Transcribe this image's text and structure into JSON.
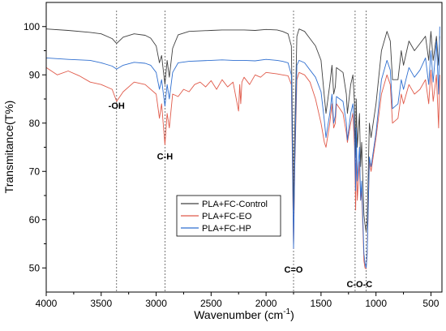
{
  "chart_data": {
    "type": "line",
    "xlabel": "Wavenumber (cm",
    "xlabel_sup": "-1",
    "xlabel_end": ")",
    "ylabel": "Transmitance(T%)",
    "xlim": [
      4000,
      400
    ],
    "ylim": [
      45,
      105
    ],
    "x_reversed": true,
    "xticks": [
      4000,
      3500,
      3000,
      2500,
      2000,
      1500,
      1000,
      500
    ],
    "yticks": [
      50,
      60,
      70,
      80,
      90,
      100
    ],
    "grid": false,
    "legend_position": "lower-center",
    "annotations": [
      {
        "label": "-OH",
        "x": 3360,
        "y": 83
      },
      {
        "label": "C-H",
        "x": 2920,
        "y": 72.5
      },
      {
        "label": "C=O",
        "x": 1750,
        "y": 49
      },
      {
        "label": "C-O-C",
        "x": 1150,
        "y": 46
      }
    ],
    "reference_lines_x": [
      3360,
      2920,
      1750,
      1190,
      1090
    ],
    "series": [
      {
        "name": "PLA+FC-Control",
        "color": "#404040",
        "x": [
          4000,
          3800,
          3600,
          3500,
          3400,
          3360,
          3300,
          3200,
          3100,
          3050,
          3000,
          2970,
          2950,
          2920,
          2900,
          2880,
          2850,
          2800,
          2700,
          2600,
          2500,
          2400,
          2300,
          2200,
          2100,
          2000,
          1900,
          1850,
          1800,
          1770,
          1760,
          1750,
          1740,
          1720,
          1700,
          1650,
          1600,
          1550,
          1500,
          1470,
          1455,
          1420,
          1400,
          1385,
          1370,
          1360,
          1300,
          1270,
          1260,
          1230,
          1210,
          1195,
          1185,
          1180,
          1170,
          1150,
          1140,
          1130,
          1110,
          1100,
          1090,
          1080,
          1060,
          1045,
          1000,
          950,
          900,
          870,
          850,
          800,
          770,
          750,
          700,
          650,
          600,
          550,
          520,
          500,
          480,
          450,
          430,
          420
        ],
        "y": [
          99.5,
          99.2,
          98.8,
          98.5,
          97.5,
          96.5,
          97.8,
          98.5,
          98.2,
          97.6,
          96.0,
          92.5,
          94.0,
          88.0,
          93.0,
          89.5,
          95.5,
          98.3,
          99.0,
          99.1,
          99.2,
          99.3,
          99.3,
          99.3,
          99.2,
          99.4,
          99.3,
          99.0,
          98.5,
          96.0,
          80.0,
          62.0,
          77.0,
          98.0,
          99.5,
          99.0,
          97.5,
          96.0,
          93.0,
          85.5,
          82.0,
          88.0,
          92.0,
          86.0,
          87.5,
          91.5,
          90.5,
          86.0,
          82.0,
          88.0,
          90.0,
          84.0,
          73.0,
          85.0,
          75.0,
          82.0,
          71.0,
          76.0,
          61.0,
          59.0,
          57.5,
          60.0,
          80.0,
          77.0,
          84.0,
          95.0,
          99.0,
          97.0,
          89.0,
          89.0,
          95.0,
          92.0,
          97.0,
          95.0,
          96.5,
          98.0,
          93.0,
          99.0,
          93.0,
          98.0,
          92.0,
          98.0
        ]
      },
      {
        "name": "PLA+FC-EO",
        "color": "#e05a4a",
        "x": [
          4000,
          3900,
          3800,
          3700,
          3600,
          3500,
          3400,
          3360,
          3300,
          3200,
          3100,
          3000,
          2970,
          2950,
          2920,
          2900,
          2880,
          2850,
          2800,
          2750,
          2700,
          2650,
          2600,
          2550,
          2500,
          2450,
          2400,
          2350,
          2300,
          2250,
          2240,
          2230,
          2220,
          2200,
          2150,
          2100,
          2050,
          2000,
          1900,
          1850,
          1800,
          1770,
          1760,
          1750,
          1740,
          1720,
          1700,
          1650,
          1600,
          1550,
          1500,
          1470,
          1455,
          1420,
          1400,
          1385,
          1370,
          1360,
          1300,
          1270,
          1260,
          1230,
          1210,
          1195,
          1185,
          1180,
          1170,
          1150,
          1140,
          1130,
          1110,
          1100,
          1090,
          1080,
          1060,
          1045,
          1000,
          950,
          900,
          870,
          850,
          800,
          770,
          750,
          700,
          650,
          600,
          550,
          520,
          500,
          480,
          450,
          430,
          420
        ],
        "y": [
          91.5,
          90.0,
          90.8,
          89.8,
          88.5,
          88.0,
          87.0,
          84.5,
          86.5,
          88.5,
          88.0,
          86.0,
          81.0,
          84.0,
          75.5,
          82.0,
          79.0,
          86.0,
          85.5,
          87.0,
          86.5,
          88.0,
          88.5,
          87.5,
          88.8,
          87.0,
          89.0,
          87.5,
          88.5,
          82.5,
          88.0,
          84.0,
          88.5,
          89.5,
          88.0,
          90.0,
          89.5,
          90.5,
          90.2,
          90.0,
          89.8,
          88.0,
          72.0,
          54.0,
          70.0,
          89.0,
          90.5,
          90.0,
          88.5,
          85.0,
          80.0,
          76.0,
          75.0,
          80.0,
          84.0,
          79.0,
          80.0,
          84.0,
          82.0,
          78.0,
          76.0,
          80.0,
          82.0,
          75.0,
          62.0,
          76.0,
          64.0,
          72.0,
          64.0,
          66.0,
          51.5,
          50.0,
          49.8,
          53.0,
          72.0,
          70.0,
          77.0,
          86.0,
          90.0,
          88.0,
          80.0,
          81.0,
          86.0,
          84.0,
          88.0,
          86.0,
          87.0,
          89.0,
          84.0,
          91.0,
          84.5,
          90.0,
          79.0,
          90.0
        ]
      },
      {
        "name": "PLA+FC-HP",
        "color": "#2f6fd0",
        "x": [
          4000,
          3800,
          3600,
          3500,
          3400,
          3360,
          3300,
          3200,
          3100,
          3050,
          3000,
          2970,
          2950,
          2920,
          2900,
          2880,
          2850,
          2800,
          2700,
          2600,
          2500,
          2400,
          2300,
          2200,
          2100,
          2000,
          1900,
          1850,
          1800,
          1770,
          1760,
          1750,
          1740,
          1720,
          1700,
          1650,
          1600,
          1550,
          1500,
          1470,
          1455,
          1420,
          1400,
          1385,
          1370,
          1360,
          1300,
          1270,
          1260,
          1230,
          1210,
          1195,
          1185,
          1180,
          1170,
          1150,
          1140,
          1130,
          1110,
          1100,
          1090,
          1080,
          1060,
          1045,
          1000,
          950,
          900,
          870,
          850,
          800,
          770,
          750,
          700,
          650,
          600,
          550,
          520,
          500,
          480,
          450,
          430,
          420
        ],
        "y": [
          93.5,
          93.2,
          93.0,
          92.5,
          91.8,
          91.2,
          92.0,
          92.6,
          92.4,
          92.0,
          90.5,
          87.0,
          89.0,
          83.5,
          88.0,
          85.0,
          90.5,
          92.5,
          92.8,
          92.9,
          93.0,
          93.1,
          93.0,
          93.0,
          92.9,
          93.2,
          93.0,
          92.8,
          92.5,
          90.0,
          74.0,
          54.0,
          71.0,
          92.0,
          93.0,
          92.5,
          91.0,
          89.5,
          86.5,
          80.5,
          77.0,
          82.0,
          86.0,
          80.0,
          81.5,
          85.5,
          84.5,
          80.0,
          76.5,
          82.0,
          84.0,
          78.0,
          66.0,
          79.0,
          68.0,
          75.0,
          64.0,
          68.0,
          53.0,
          51.0,
          50.0,
          53.0,
          73.0,
          71.0,
          78.0,
          89.0,
          93.0,
          91.0,
          83.0,
          84.0,
          89.0,
          87.0,
          91.5,
          89.5,
          91.0,
          93.5,
          88.0,
          95.0,
          88.5,
          97.0,
          86.0,
          100.0
        ]
      }
    ]
  }
}
